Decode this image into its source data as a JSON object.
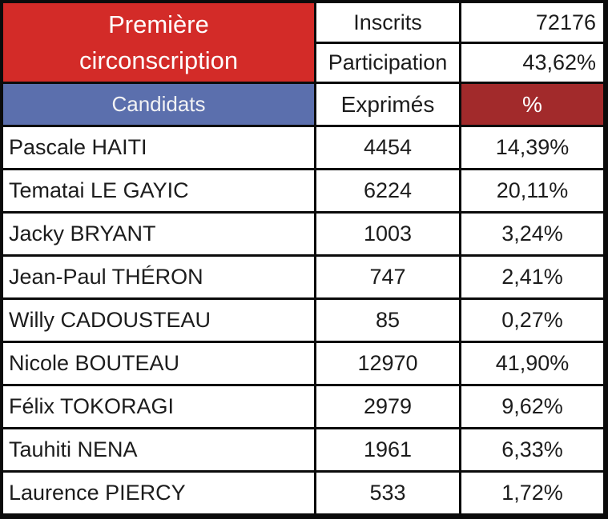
{
  "title": "Première circonscription",
  "stats": {
    "inscrits_label": "Inscrits",
    "inscrits_value": "72176",
    "participation_label": "Participation",
    "participation_value": "43,62%"
  },
  "columns": {
    "candidates": "Candidats",
    "votes": "Exprimés",
    "percent": "%"
  },
  "results": [
    {
      "name": "Pascale HAITI",
      "votes": "4454",
      "pct": "14,39%"
    },
    {
      "name": "Tematai LE GAYIC",
      "votes": "6224",
      "pct": "20,11%"
    },
    {
      "name": "Jacky BRYANT",
      "votes": "1003",
      "pct": "3,24%"
    },
    {
      "name": "Jean-Paul THÉRON",
      "votes": "747",
      "pct": "2,41%"
    },
    {
      "name": "Willy CADOUSTEAU",
      "votes": "85",
      "pct": "0,27%"
    },
    {
      "name": "Nicole BOUTEAU",
      "votes": "12970",
      "pct": "41,90%"
    },
    {
      "name": "Félix TOKORAGI",
      "votes": "2979",
      "pct": "9,62%"
    },
    {
      "name": "Tauhiti NENA",
      "votes": "1961",
      "pct": "6,33%"
    },
    {
      "name": "Laurence PIERCY",
      "votes": "533",
      "pct": "1,72%"
    }
  ],
  "colors": {
    "header_red": "#d32b28",
    "candidats_blue": "#5b6fad",
    "percent_dark_red": "#a22a2b",
    "gridline_black": "#0b0b0b",
    "cell_white": "#ffffff"
  },
  "chart_data": {
    "type": "table",
    "title": "Première circonscription",
    "columns": [
      "Candidats",
      "Exprimés",
      "%"
    ],
    "inscrits": 72176,
    "participation_pct": 43.62,
    "rows": [
      [
        "Pascale HAITI",
        4454,
        14.39
      ],
      [
        "Tematai LE GAYIC",
        6224,
        20.11
      ],
      [
        "Jacky BRYANT",
        1003,
        3.24
      ],
      [
        "Jean-Paul THÉRON",
        747,
        2.41
      ],
      [
        "Willy CADOUSTEAU",
        85,
        0.27
      ],
      [
        "Nicole BOUTEAU",
        12970,
        41.9
      ],
      [
        "Félix TOKORAGI",
        2979,
        9.62
      ],
      [
        "Tauhiti NENA",
        1961,
        6.33
      ],
      [
        "Laurence PIERCY",
        533,
        1.72
      ]
    ]
  }
}
